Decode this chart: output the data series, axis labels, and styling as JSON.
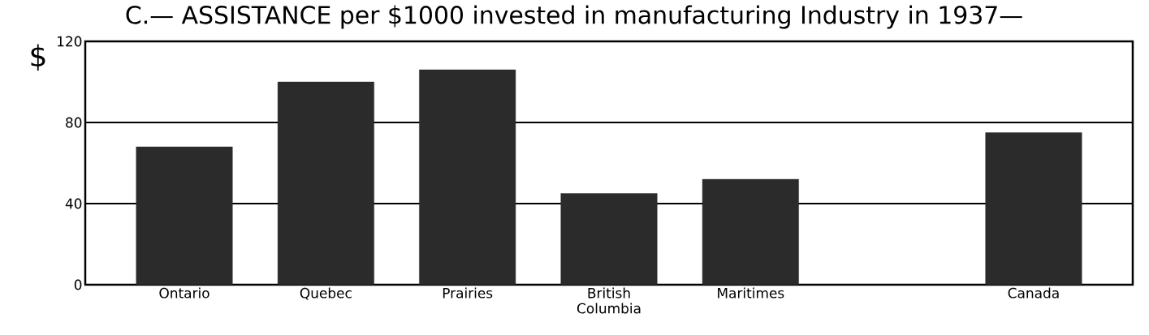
{
  "chart_data": {
    "type": "bar",
    "title": "C.— ASSISTANCE per $1000 invested in manufacturing Industry in 1937—",
    "ylabel": "$",
    "categories": [
      "Ontario",
      "Quebec",
      "Prairies",
      "British Columbia",
      "Maritimes",
      null,
      "Canada"
    ],
    "values": [
      68,
      100,
      106,
      45,
      52,
      null,
      75
    ],
    "color": "#2b2b2b",
    "ylim": [
      0,
      120
    ],
    "yticks": [
      0,
      40,
      80,
      120
    ],
    "grid": "y"
  }
}
